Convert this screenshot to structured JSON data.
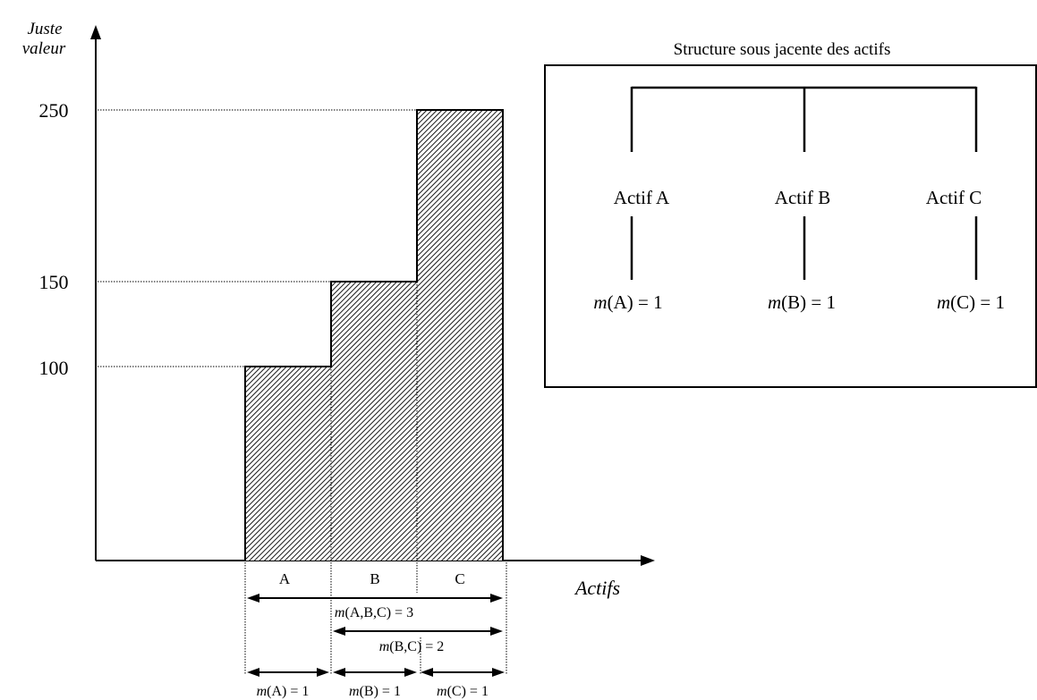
{
  "y_axis": {
    "label_line1": "Juste",
    "label_line2": "valeur"
  },
  "x_axis": {
    "label": "Actifs"
  },
  "ticks": [
    {
      "value": 250,
      "label": "250"
    },
    {
      "value": 150,
      "label": "150"
    },
    {
      "value": 100,
      "label": "100"
    }
  ],
  "bars": [
    {
      "label": "A",
      "value": 100
    },
    {
      "label": "B",
      "value": 150
    },
    {
      "label": "C",
      "value": 250
    }
  ],
  "measures": {
    "abc": {
      "func": "m",
      "args": "(A,B,C) = 3"
    },
    "bc": {
      "func": "m",
      "args": "(B,C) = 2"
    },
    "a": {
      "func": "m",
      "args": "(A) = 1"
    },
    "b": {
      "func": "m",
      "args": "(B) = 1"
    },
    "c": {
      "func": "m",
      "args": "(C) = 1"
    }
  },
  "structure": {
    "title": "Structure sous jacente des actifs",
    "assets": [
      {
        "name": "Actif A",
        "func": "m",
        "args": "(A) = 1"
      },
      {
        "name": "Actif B",
        "func": "m",
        "args": "(B) = 1"
      },
      {
        "name": "Actif C",
        "func": "m",
        "args": "(C) = 1"
      }
    ]
  }
}
